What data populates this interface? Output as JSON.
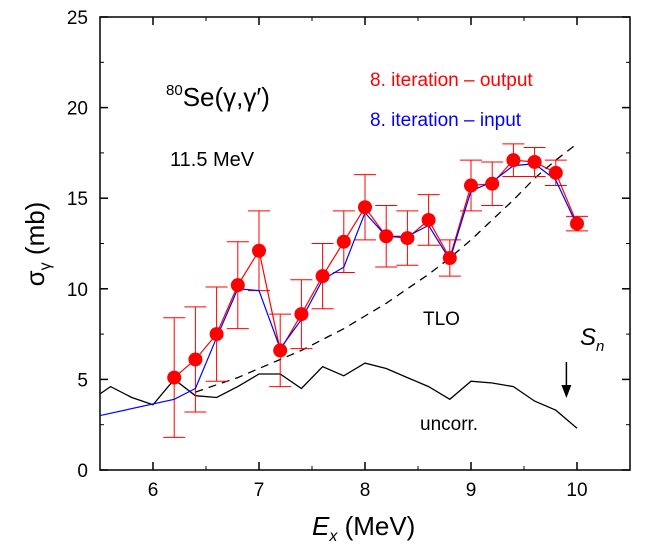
{
  "chart_data": {
    "type": "scatter",
    "title": "",
    "xlabel": {
      "main": "E",
      "sub": "x",
      "units": " (MeV)"
    },
    "ylabel": {
      "main": "σ",
      "sub": "γ",
      "units": " (mb)"
    },
    "xlim": [
      5.5,
      10.5
    ],
    "ylim": [
      0,
      25
    ],
    "xticks": [
      6,
      7,
      8,
      9,
      10
    ],
    "yticks": [
      0,
      5,
      10,
      15,
      20,
      25
    ],
    "grid": false,
    "annotations": {
      "reaction": {
        "sup": "80",
        "text": "Se(γ,γ′)"
      },
      "energy": "11.5 MeV",
      "tlo": "TLO",
      "uncorr": "uncorr.",
      "sn": {
        "main": "S",
        "sub": "n",
        "x": 9.9
      }
    },
    "legend_position": "top-right",
    "series": [
      {
        "name": "8. iteration – output",
        "color": "#ff0000",
        "style": "markers+line",
        "x": [
          6.2,
          6.4,
          6.6,
          6.8,
          7.0,
          7.2,
          7.4,
          7.6,
          7.8,
          8.0,
          8.2,
          8.4,
          8.6,
          8.8,
          9.0,
          9.2,
          9.4,
          9.6,
          9.8,
          10.0
        ],
        "y": [
          5.1,
          6.1,
          7.5,
          10.2,
          12.1,
          6.6,
          8.6,
          10.7,
          12.6,
          14.5,
          12.9,
          12.8,
          13.8,
          11.7,
          15.7,
          15.8,
          17.1,
          17.0,
          16.4,
          13.6
        ],
        "err": [
          3.3,
          2.9,
          2.6,
          2.4,
          2.2,
          2.0,
          1.9,
          1.8,
          1.7,
          1.8,
          1.7,
          1.5,
          1.4,
          1.0,
          1.4,
          1.2,
          0.9,
          0.8,
          0.7,
          0.4
        ]
      },
      {
        "name": "8. iteration – input",
        "color": "#0000ff",
        "style": "line",
        "x": [
          5.5,
          6.2,
          6.4,
          6.6,
          6.8,
          7.0,
          7.2,
          7.4,
          7.6,
          7.8,
          8.0,
          8.2,
          8.4,
          8.6,
          8.8,
          9.0,
          9.2,
          9.4,
          9.6,
          9.8,
          10.0
        ],
        "y": [
          3.0,
          3.9,
          4.5,
          7.3,
          10.0,
          9.9,
          6.7,
          8.3,
          10.5,
          11.2,
          14.2,
          12.9,
          12.9,
          13.5,
          11.6,
          15.4,
          15.9,
          16.8,
          16.9,
          16.0,
          13.5
        ]
      },
      {
        "name": "TLO",
        "color": "#000000",
        "style": "dashed",
        "x": [
          6.4,
          6.6,
          6.8,
          7.0,
          7.2,
          7.4,
          7.6,
          7.8,
          8.0,
          8.2,
          8.4,
          8.6,
          8.8,
          9.0,
          9.2,
          9.4,
          9.6,
          9.8,
          10.0
        ],
        "y": [
          4.3,
          4.7,
          5.1,
          5.6,
          6.1,
          6.6,
          7.2,
          7.8,
          8.5,
          9.2,
          10.0,
          10.8,
          11.7,
          12.7,
          13.8,
          14.9,
          16.1,
          17.1,
          18.0
        ]
      },
      {
        "name": "uncorr.",
        "color": "#000000",
        "style": "line",
        "x": [
          5.5,
          5.6,
          5.8,
          6.0,
          6.2,
          6.4,
          6.6,
          6.8,
          7.0,
          7.2,
          7.4,
          7.6,
          7.8,
          8.0,
          8.2,
          8.4,
          8.6,
          8.8,
          9.0,
          9.2,
          9.4,
          9.6,
          9.8,
          10.0
        ],
        "y": [
          4.2,
          4.6,
          4.0,
          3.6,
          5.0,
          4.1,
          4.0,
          4.6,
          5.3,
          5.3,
          4.5,
          5.7,
          5.2,
          5.9,
          5.6,
          5.1,
          4.6,
          3.9,
          4.9,
          4.8,
          4.6,
          3.8,
          3.3,
          2.3
        ]
      }
    ]
  }
}
